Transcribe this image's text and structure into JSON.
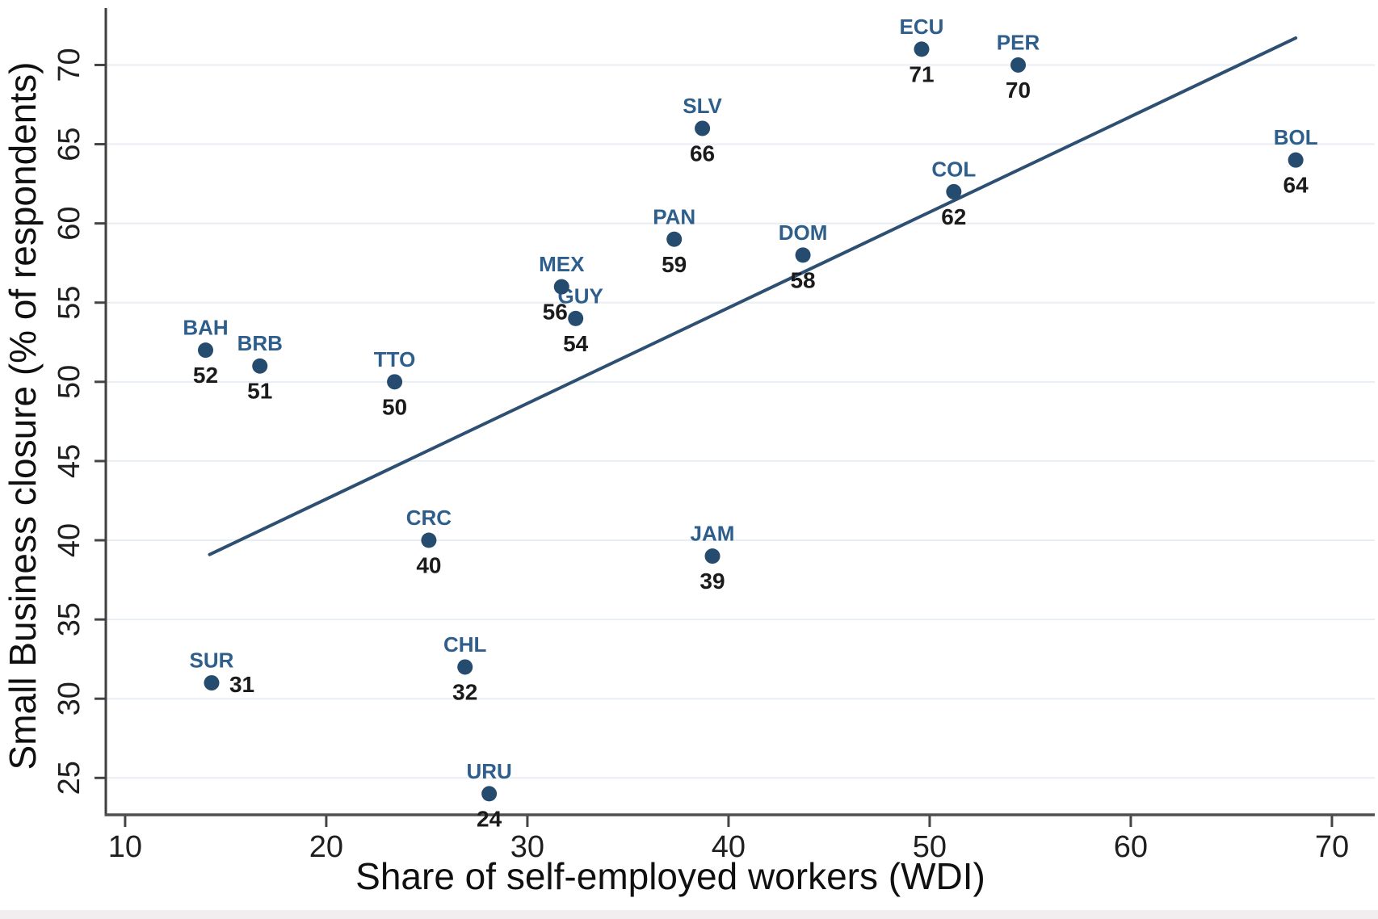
{
  "figure": {
    "background": "#ffffff",
    "bottom_strip_color": "#F0EEEF"
  },
  "chart_data": {
    "type": "scatter",
    "title": "",
    "xlabel": "Share of self-employed workers (WDI)",
    "ylabel": "Small Business closure (% of respondents)",
    "x_ticks": [
      10,
      20,
      30,
      40,
      50,
      60,
      70
    ],
    "y_ticks": [
      25,
      30,
      35,
      40,
      45,
      50,
      55,
      60,
      65,
      70
    ],
    "xlim": [
      9.04,
      72.13
    ],
    "ylim": [
      22.67,
      73.49
    ],
    "grid": "horizontal-only",
    "legend": "none",
    "points": [
      {
        "code": "BAH",
        "x": 14.0,
        "y": 52,
        "label": "52"
      },
      {
        "code": "BRB",
        "x": 16.7,
        "y": 51,
        "label": "51"
      },
      {
        "code": "TTO",
        "x": 23.4,
        "y": 50,
        "label": "50"
      },
      {
        "code": "SUR",
        "x": 14.3,
        "y": 31,
        "label": "31",
        "value_side": "right"
      },
      {
        "code": "CRC",
        "x": 25.1,
        "y": 40,
        "label": "40"
      },
      {
        "code": "CHL",
        "x": 26.9,
        "y": 32,
        "label": "32"
      },
      {
        "code": "URU",
        "x": 28.1,
        "y": 24,
        "label": "24"
      },
      {
        "code": "MEX",
        "x": 31.7,
        "y": 56,
        "label": "56",
        "value_dx": -8
      },
      {
        "code": "GUY",
        "x": 32.4,
        "y": 54,
        "label": "54",
        "code_dx": 6
      },
      {
        "code": "PAN",
        "x": 37.3,
        "y": 59,
        "label": "59"
      },
      {
        "code": "SLV",
        "x": 38.7,
        "y": 66,
        "label": "66"
      },
      {
        "code": "JAM",
        "x": 39.2,
        "y": 39,
        "label": "39"
      },
      {
        "code": "DOM",
        "x": 43.7,
        "y": 58,
        "label": "58"
      },
      {
        "code": "ECU",
        "x": 49.6,
        "y": 71,
        "label": "71"
      },
      {
        "code": "COL",
        "x": 51.2,
        "y": 62,
        "label": "62"
      },
      {
        "code": "PER",
        "x": 54.4,
        "y": 70,
        "label": "70"
      },
      {
        "code": "BOL",
        "x": 68.2,
        "y": 64,
        "label": "64"
      }
    ],
    "fit_line": {
      "x1": 14.2,
      "y1": 39.1,
      "x2": 68.2,
      "y2": 71.7
    },
    "colors": {
      "dot": "#254B6E",
      "code_label": "#2E5E8C",
      "value_label": "#1B1B1B",
      "fit_line": "#2C4F72",
      "gridline": "#E8EEF3",
      "axis": "#454545",
      "tick_label": "#1F1F1F",
      "axis_title": "#101010"
    }
  }
}
